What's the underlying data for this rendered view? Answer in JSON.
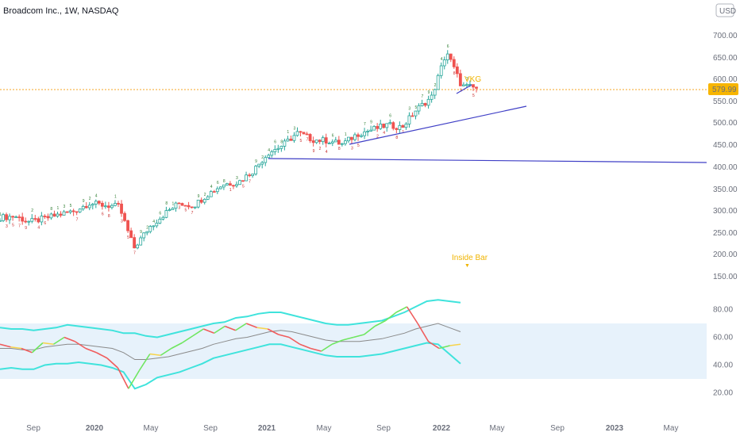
{
  "header": {
    "symbol_title": "Broadcom Inc., 1W, NASDAQ",
    "currency": "USD"
  },
  "colors": {
    "up": "#26a69a",
    "down": "#ef5350",
    "rsi_up": "#6ee65f",
    "rsi_down": "#f05c5c",
    "rsi_neutral": "#f7d34a",
    "band": "#3fe3dc",
    "trendline": "#3f3fc6",
    "last_price_line": "#f5a623",
    "last_price_bg": "#f7b500",
    "annotation": "#f0b400",
    "overbought_fill": "#e7f2fb"
  },
  "annotations": {
    "inside_bar_label": "Inside Bar",
    "inside_bar_arrow": "▼",
    "marker_label": "VKG"
  },
  "chart_data": [
    {
      "type": "candlestick",
      "title": "Broadcom Inc., 1W, NASDAQ",
      "y_axis_ticks": [
        "700.00",
        "650.00",
        "600.00",
        "550.00",
        "500.00",
        "450.00",
        "400.00",
        "350.00",
        "300.00",
        "250.00",
        "200.00",
        "150.00"
      ],
      "ylim": [
        150,
        720
      ],
      "x_axis_ticks": [
        "Sep",
        "2020",
        "May",
        "Sep",
        "2021",
        "May",
        "Sep",
        "2022",
        "May",
        "Sep",
        "2023",
        "May"
      ],
      "last_price": "579.99",
      "series": [
        {
          "date": "2019-06",
          "value": 285
        },
        {
          "date": "2019-07",
          "value": 288
        },
        {
          "date": "2019-08",
          "value": 275
        },
        {
          "date": "2019-09",
          "value": 283
        },
        {
          "date": "2019-10",
          "value": 292
        },
        {
          "date": "2019-11",
          "value": 300
        },
        {
          "date": "2019-12",
          "value": 318
        },
        {
          "date": "2020-01",
          "value": 313
        },
        {
          "date": "2020-02",
          "value": 310
        },
        {
          "date": "2020-03",
          "value": 215
        },
        {
          "date": "2020-04",
          "value": 262
        },
        {
          "date": "2020-05",
          "value": 292
        },
        {
          "date": "2020-06",
          "value": 318
        },
        {
          "date": "2020-07",
          "value": 312
        },
        {
          "date": "2020-08",
          "value": 340
        },
        {
          "date": "2020-09",
          "value": 362
        },
        {
          "date": "2020-10",
          "value": 366
        },
        {
          "date": "2020-11",
          "value": 392
        },
        {
          "date": "2020-12",
          "value": 432
        },
        {
          "date": "2021-01",
          "value": 450
        },
        {
          "date": "2021-02",
          "value": 478
        },
        {
          "date": "2021-03",
          "value": 462
        },
        {
          "date": "2021-04",
          "value": 460
        },
        {
          "date": "2021-05",
          "value": 452
        },
        {
          "date": "2021-06",
          "value": 475
        },
        {
          "date": "2021-07",
          "value": 485
        },
        {
          "date": "2021-08",
          "value": 495
        },
        {
          "date": "2021-09",
          "value": 490
        },
        {
          "date": "2021-10",
          "value": 532
        },
        {
          "date": "2021-11",
          "value": 560
        },
        {
          "date": "2021-12",
          "value": 665
        },
        {
          "date": "2022-01",
          "value": 585
        },
        {
          "date": "2022-02",
          "value": 579.99
        }
      ]
    },
    {
      "type": "line",
      "y_axis_ticks": [
        "80.00",
        "60.00",
        "40.00",
        "20.00"
      ],
      "ylim": [
        15,
        95
      ],
      "overbought_band": [
        30,
        70
      ],
      "series": [
        {
          "values": [
            55,
            53,
            52,
            49,
            56,
            55,
            60,
            57,
            52,
            49,
            45,
            38,
            23,
            36,
            48,
            47,
            52,
            56,
            61,
            66,
            63,
            68,
            65,
            70,
            67,
            66,
            62,
            60,
            55,
            52,
            50,
            55,
            58,
            60,
            62,
            68,
            72,
            78,
            82,
            70,
            57,
            52,
            54,
            55
          ]
        },
        {
          "values": [
            52,
            52,
            51,
            51,
            53,
            54,
            55,
            55,
            54,
            53,
            52,
            49,
            44,
            44,
            45,
            46,
            48,
            50,
            52,
            55,
            57,
            59,
            60,
            62,
            64,
            65,
            64,
            62,
            60,
            58,
            57,
            57,
            57,
            58,
            59,
            61,
            63,
            66,
            68,
            70,
            67,
            64
          ]
        },
        {
          "values": [
            67,
            66,
            66,
            65,
            66,
            67,
            69,
            68,
            67,
            66,
            65,
            63,
            63,
            61,
            60,
            62,
            64,
            66,
            68,
            70,
            71,
            74,
            75,
            77,
            78,
            78,
            76,
            74,
            72,
            70,
            69,
            69,
            70,
            71,
            72,
            75,
            78,
            82,
            86,
            87,
            86,
            85
          ]
        },
        {
          "values": [
            37,
            38,
            37,
            37,
            40,
            41,
            41,
            42,
            41,
            40,
            38,
            35,
            23,
            26,
            31,
            33,
            35,
            38,
            41,
            45,
            47,
            49,
            51,
            53,
            55,
            55,
            53,
            51,
            49,
            47,
            46,
            46,
            46,
            47,
            48,
            50,
            52,
            54,
            56,
            55,
            48,
            41
          ]
        }
      ]
    }
  ]
}
